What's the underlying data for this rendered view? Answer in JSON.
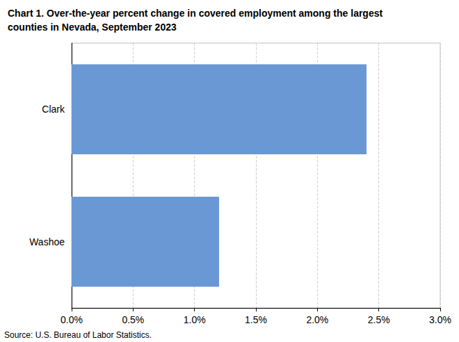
{
  "chart_data": {
    "type": "bar",
    "orientation": "horizontal",
    "title": "Chart 1. Over-the-year percent change in covered employment among the largest counties in Nevada, September 2023",
    "source": "Source: U.S. Bureau of Labor Statistics.",
    "categories": [
      "Clark",
      "Washoe"
    ],
    "values": [
      2.4,
      1.2
    ],
    "color": "#6a98d5",
    "xlim": [
      0,
      3.0
    ],
    "xticks": [
      {
        "value": 0,
        "label": "0.0%"
      },
      {
        "value": 0.5,
        "label": "0.5%"
      },
      {
        "value": 1.0,
        "label": "1.0%"
      },
      {
        "value": 1.5,
        "label": "1.5%"
      },
      {
        "value": 2.0,
        "label": "2.0%"
      },
      {
        "value": 2.5,
        "label": "2.5%"
      },
      {
        "value": 3.0,
        "label": "3.0%"
      }
    ],
    "grid": true
  }
}
